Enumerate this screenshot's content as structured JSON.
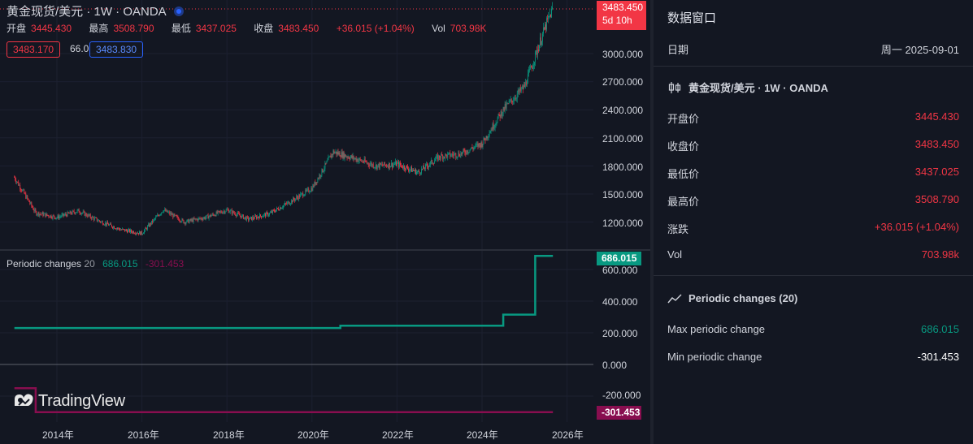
{
  "symbol": {
    "title": "黄金现货/美元 · 1W · OANDA"
  },
  "ohlc": {
    "open_label": "开盘",
    "open": "3445.430",
    "high_label": "最高",
    "high": "3508.790",
    "low_label": "最低",
    "low": "3437.025",
    "close_label": "收盘",
    "close": "3483.450",
    "change": "+36.015 (+1.04%)",
    "vol_label": "Vol",
    "vol": "703.98K"
  },
  "price_boxes": {
    "bid": "3483.170",
    "spread": "66.0",
    "ask": "3483.830"
  },
  "price_tag": {
    "price": "3483.450",
    "countdown": "5d 10h"
  },
  "price_axis": [
    "3000.000",
    "2700.000",
    "2400.000",
    "2100.000",
    "1800.000",
    "1500.000",
    "1200.000"
  ],
  "indicator": {
    "name": "Periodic changes",
    "length": "20",
    "max": "686.015",
    "min": "-301.453",
    "axis": [
      "600.000",
      "400.000",
      "200.000",
      "0.000",
      "-200.000"
    ],
    "max_tag": "686.015",
    "min_tag": "-301.453"
  },
  "time_axis": [
    "2014年",
    "2016年",
    "2018年",
    "2020年",
    "2022年",
    "2024年",
    "2026年"
  ],
  "watermark": "TradingView",
  "colors": {
    "up": "#089981",
    "down": "#f23645",
    "teal": "#089981",
    "magenta": "#880e4f",
    "bg": "#131722"
  },
  "chart_data": [
    {
      "type": "candlestick",
      "title": "黄金现货/美元 · 1W · OANDA",
      "x": [
        "2013-01",
        "2013-07",
        "2014-01",
        "2014-07",
        "2015-01",
        "2015-07",
        "2016-01",
        "2016-07",
        "2017-01",
        "2017-07",
        "2018-01",
        "2018-07",
        "2019-01",
        "2019-07",
        "2020-01",
        "2020-07",
        "2021-01",
        "2021-07",
        "2022-01",
        "2022-07",
        "2023-01",
        "2023-07",
        "2024-01",
        "2024-07",
        "2025-01",
        "2025-07",
        "2025-09"
      ],
      "y": [
        1680,
        1300,
        1250,
        1320,
        1210,
        1120,
        1080,
        1330,
        1200,
        1250,
        1330,
        1230,
        1290,
        1420,
        1560,
        1950,
        1880,
        1800,
        1820,
        1730,
        1900,
        1930,
        2040,
        2400,
        2650,
        3300,
        3483
      ],
      "ylim": [
        1000,
        3550
      ]
    },
    {
      "type": "line",
      "title": "Periodic changes 20",
      "series": [
        {
          "name": "max",
          "x": [
            "2013-01",
            "2020-09",
            "2020-09",
            "2024-07",
            "2024-07",
            "2025-04",
            "2025-04",
            "2025-09"
          ],
          "values": [
            230,
            230,
            245,
            245,
            315,
            315,
            686,
            686
          ]
        },
        {
          "name": "min",
          "x": [
            "2013-01",
            "2013-07",
            "2013-07",
            "2025-09"
          ],
          "values": [
            -150,
            -150,
            -301,
            -301
          ]
        }
      ],
      "ylim": [
        -320,
        720
      ]
    }
  ],
  "data_window": {
    "title": "数据窗口",
    "date_label": "日期",
    "date": "周一 2025-09-01",
    "symbol_section": "黄金现货/美元 · 1W · OANDA",
    "rows": [
      {
        "label": "开盘价",
        "value": "3445.430"
      },
      {
        "label": "收盘价",
        "value": "3483.450"
      },
      {
        "label": "最低价",
        "value": "3437.025"
      },
      {
        "label": "最高价",
        "value": "3508.790"
      },
      {
        "label": "涨跌",
        "value": "+36.015 (+1.04%)"
      },
      {
        "label": "Vol",
        "value": "703.98k"
      }
    ],
    "indicator_section": "Periodic changes (20)",
    "ind_rows": [
      {
        "label": "Max periodic change",
        "value": "686.015"
      },
      {
        "label": "Min periodic change",
        "value": "-301.453"
      }
    ]
  }
}
